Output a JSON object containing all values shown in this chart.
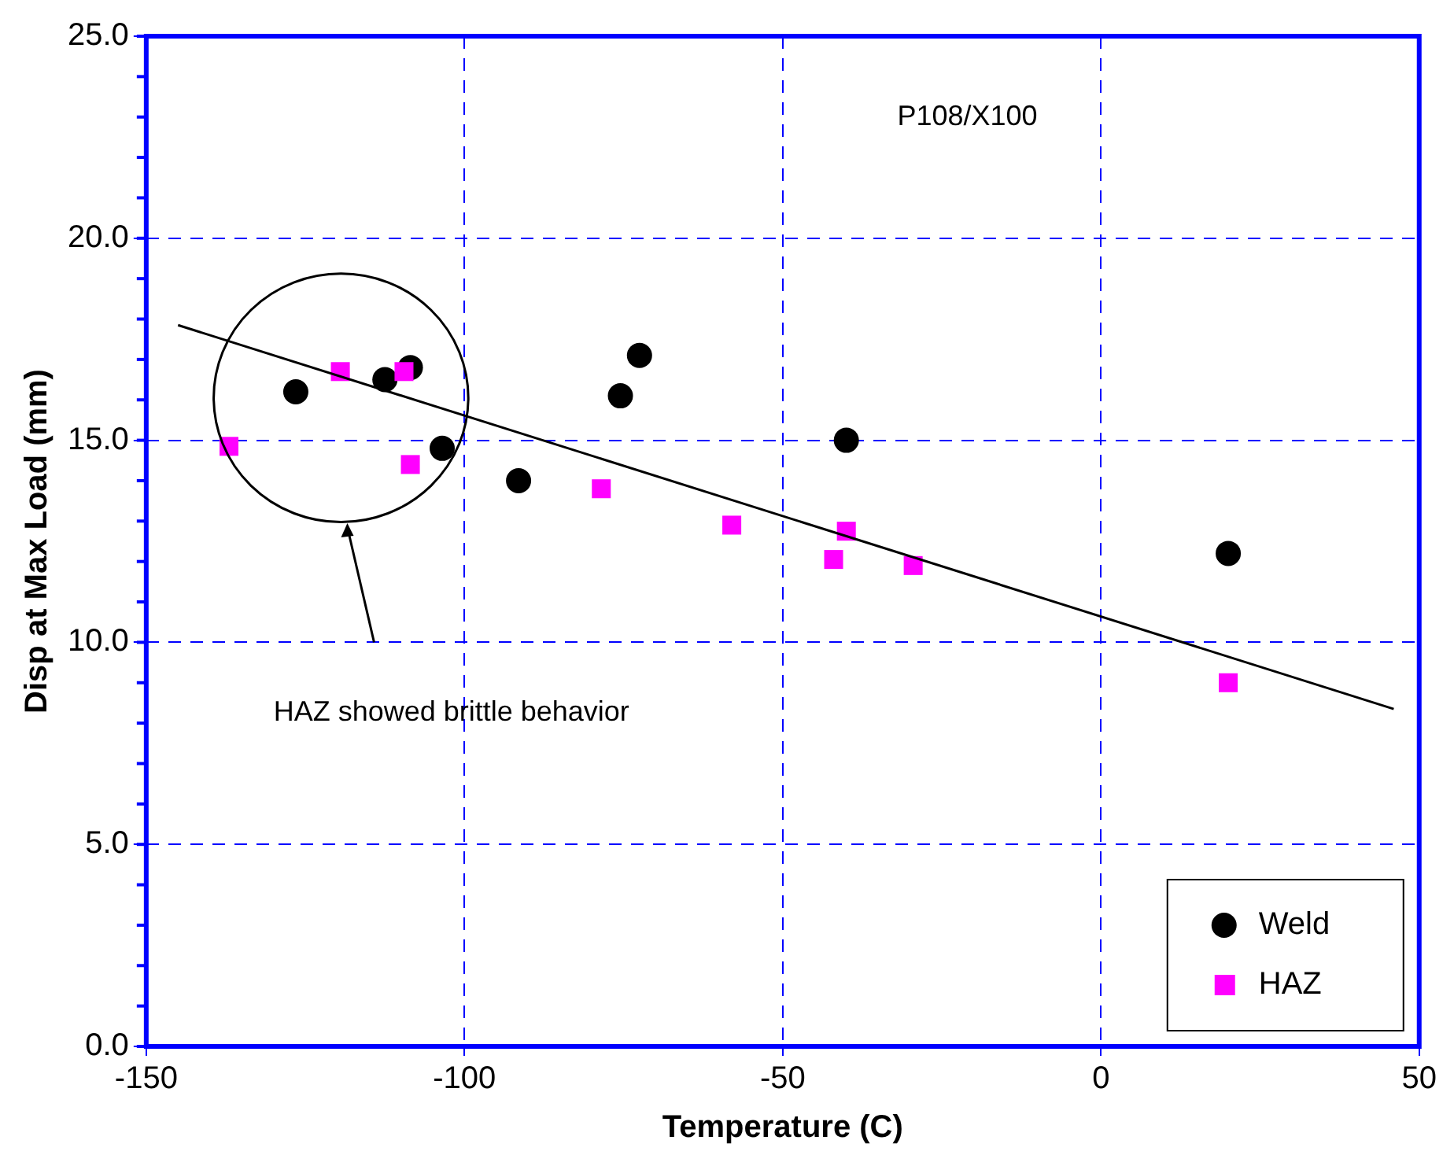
{
  "chart_data": {
    "type": "scatter",
    "xlabel": "Temperature (C)",
    "ylabel": "Disp at Max Load (mm)",
    "xlim": [
      -150,
      50
    ],
    "xticks": [
      -150,
      -100,
      -50,
      0,
      50
    ],
    "ylim": [
      0,
      25
    ],
    "yticks": [
      {
        "value": 0,
        "label": "0.0"
      },
      {
        "value": 5,
        "label": "5.0"
      },
      {
        "value": 10,
        "label": "10.0"
      },
      {
        "value": 15,
        "label": "15.0"
      },
      {
        "value": 20,
        "label": "20.0"
      },
      {
        "value": 25,
        "label": "25.0"
      }
    ],
    "grid": true,
    "legend": "bottom right",
    "annotations": [
      "P108/X100",
      "HAZ showed brittle behavior"
    ],
    "series": [
      {
        "name": "Weld",
        "color": "#000000",
        "marker": "circle",
        "x": [
          -126.5,
          -112.5,
          -108.5,
          -103.5,
          -91.5,
          -75.5,
          -72.5,
          -40,
          20
        ],
        "values": [
          16.2,
          16.5,
          16.8,
          14.8,
          14.0,
          16.1,
          17.1,
          15.0,
          12.2
        ]
      },
      {
        "name": "HAZ",
        "color": "#ff00ff",
        "marker": "square",
        "x": [
          -137,
          -119.5,
          -109.5,
          -108.5,
          -78.5,
          -58,
          -42,
          -40,
          -29.5,
          20
        ],
        "values": [
          14.85,
          16.7,
          16.7,
          14.4,
          13.8,
          12.9,
          12.05,
          12.75,
          11.9,
          9.0
        ]
      },
      {
        "type": "line",
        "color": "#000000",
        "marker": "none",
        "x": [
          -145,
          46
        ],
        "values": [
          17.85,
          8.35
        ]
      }
    ]
  }
}
